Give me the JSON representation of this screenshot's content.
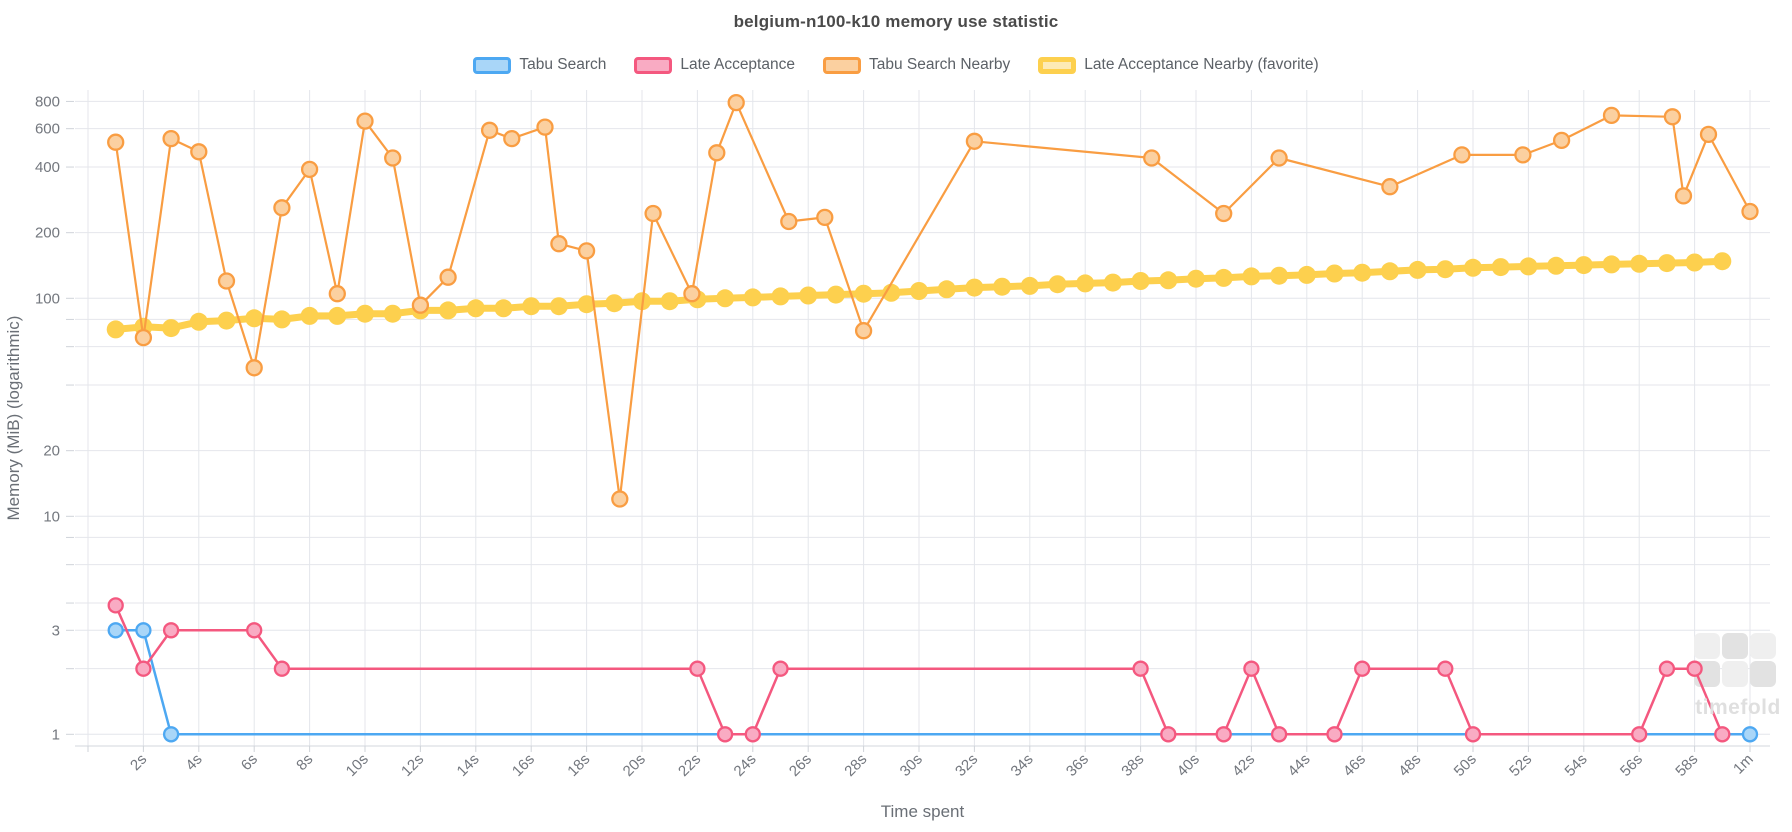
{
  "title": "belgium-n100-k10 memory use statistic",
  "legend": {
    "items": [
      {
        "label": "Tabu Search",
        "line": "#4da8f2",
        "fill": "#a9d6f8",
        "border_width": 3
      },
      {
        "label": "Late Acceptance",
        "line": "#f4587f",
        "fill": "#f9abc3",
        "border_width": 3
      },
      {
        "label": "Tabu Search Nearby",
        "line": "#f99d42",
        "fill": "#fbd0a0",
        "border_width": 3
      },
      {
        "label": "Late Acceptance Nearby (favorite)",
        "line": "#fdd04e",
        "fill": "#fdeab5",
        "border_width": 5
      }
    ]
  },
  "axes": {
    "x": {
      "name": "Time spent",
      "tick_seconds": [
        2,
        4,
        6,
        8,
        10,
        12,
        14,
        16,
        18,
        20,
        22,
        24,
        26,
        28,
        30,
        32,
        34,
        36,
        38,
        40,
        42,
        44,
        46,
        48,
        50,
        52,
        54,
        56,
        58,
        60
      ],
      "tick_labels": [
        "2s",
        "4s",
        "6s",
        "8s",
        "10s",
        "12s",
        "14s",
        "16s",
        "18s",
        "20s",
        "22s",
        "24s",
        "26s",
        "28s",
        "30s",
        "32s",
        "34s",
        "36s",
        "38s",
        "40s",
        "42s",
        "44s",
        "46s",
        "48s",
        "50s",
        "52s",
        "54s",
        "56s",
        "58s",
        "1m"
      ],
      "gridline_seconds": [
        0,
        2,
        4,
        6,
        8,
        10,
        12,
        14,
        16,
        18,
        20,
        22,
        24,
        26,
        28,
        30,
        32,
        34,
        36,
        38,
        40,
        42,
        44,
        46,
        48,
        50,
        52,
        54,
        56,
        58,
        60
      ]
    },
    "y": {
      "name": "Memory (MiB) (logarithmic)",
      "labeled_ticks": [
        800,
        600,
        400,
        200,
        100,
        20,
        10,
        3,
        1
      ],
      "minor_ticks": [
        2,
        4,
        6,
        8,
        40,
        60,
        80
      ]
    }
  },
  "watermark": {
    "text": "timefold"
  },
  "chart_data": {
    "type": "line",
    "title": "belgium-n100-k10 memory use statistic",
    "xlabel": "Time spent",
    "ylabel": "Memory (MiB) (logarithmic)",
    "x_unit": "seconds",
    "y_scale": "log",
    "x_range": [
      0,
      60
    ],
    "y_range": [
      0.9,
      900
    ],
    "grid": true,
    "legend_position": "top",
    "series": [
      {
        "name": "Tabu Search",
        "color": "#4da8f2",
        "marker_fill": "#a9d6f8",
        "width": 2.5,
        "marker_r": 7,
        "points": [
          [
            1,
            3
          ],
          [
            2,
            3
          ],
          [
            3,
            1
          ],
          [
            60,
            1
          ]
        ]
      },
      {
        "name": "Late Acceptance",
        "color": "#f4587f",
        "marker_fill": "#f9abc3",
        "width": 2.5,
        "marker_r": 7,
        "points": [
          [
            1,
            3.9
          ],
          [
            2,
            2
          ],
          [
            3,
            3
          ],
          [
            6,
            3
          ],
          [
            7,
            2
          ],
          [
            22,
            2
          ],
          [
            23,
            1
          ],
          [
            24,
            1
          ],
          [
            25,
            2
          ],
          [
            38,
            2
          ],
          [
            39,
            1
          ],
          [
            41,
            1
          ],
          [
            42,
            2
          ],
          [
            43,
            1
          ],
          [
            45,
            1
          ],
          [
            46,
            2
          ],
          [
            49,
            2
          ],
          [
            50,
            1
          ],
          [
            56,
            1
          ],
          [
            57,
            2
          ],
          [
            58,
            2
          ],
          [
            59,
            1
          ]
        ]
      },
      {
        "name": "Tabu Search Nearby",
        "color": "#f99d42",
        "marker_fill": "#fbd0a0",
        "width": 2.2,
        "marker_r": 7.5,
        "points": [
          [
            1,
            520
          ],
          [
            2,
            66
          ],
          [
            3,
            540
          ],
          [
            4,
            470
          ],
          [
            5,
            120
          ],
          [
            6,
            48
          ],
          [
            7,
            260
          ],
          [
            8,
            390
          ],
          [
            9,
            105
          ],
          [
            10,
            650
          ],
          [
            11,
            440
          ],
          [
            12,
            93
          ],
          [
            13,
            125
          ],
          [
            14.5,
            590
          ],
          [
            15.3,
            540
          ],
          [
            16.5,
            610
          ],
          [
            17,
            178
          ],
          [
            18,
            165
          ],
          [
            19.2,
            12
          ],
          [
            20.4,
            245
          ],
          [
            21.8,
            105
          ],
          [
            22.7,
            465
          ],
          [
            23.4,
            790
          ],
          [
            25.3,
            225
          ],
          [
            26.6,
            235
          ],
          [
            28,
            71
          ],
          [
            32,
            525
          ],
          [
            38.4,
            440
          ],
          [
            41,
            245
          ],
          [
            43,
            440
          ],
          [
            47,
            325
          ],
          [
            49.6,
            455
          ],
          [
            51.8,
            455
          ],
          [
            53.2,
            530
          ],
          [
            55,
            690
          ],
          [
            57.2,
            680
          ],
          [
            57.6,
            295
          ],
          [
            58.5,
            565
          ],
          [
            60,
            250
          ]
        ]
      },
      {
        "name": "Late Acceptance Nearby (favorite)",
        "color": "#fdd04e",
        "marker_fill": "#fdd04e",
        "width": 7,
        "marker_r": 9,
        "points": [
          [
            1,
            72
          ],
          [
            2,
            74
          ],
          [
            3,
            73
          ],
          [
            4,
            78
          ],
          [
            5,
            79
          ],
          [
            6,
            81
          ],
          [
            7,
            80
          ],
          [
            8,
            83
          ],
          [
            9,
            83
          ],
          [
            10,
            85
          ],
          [
            11,
            85
          ],
          [
            12,
            88
          ],
          [
            13,
            88
          ],
          [
            14,
            90
          ],
          [
            15,
            90
          ],
          [
            16,
            92
          ],
          [
            17,
            92
          ],
          [
            18,
            94
          ],
          [
            19,
            95
          ],
          [
            20,
            97
          ],
          [
            21,
            97
          ],
          [
            22,
            99
          ],
          [
            23,
            100
          ],
          [
            24,
            101
          ],
          [
            25,
            102
          ],
          [
            26,
            103
          ],
          [
            27,
            104
          ],
          [
            28,
            105
          ],
          [
            29,
            106
          ],
          [
            30,
            108
          ],
          [
            31,
            110
          ],
          [
            32,
            112
          ],
          [
            33,
            113
          ],
          [
            34,
            114
          ],
          [
            35,
            116
          ],
          [
            36,
            117
          ],
          [
            37,
            118
          ],
          [
            38,
            120
          ],
          [
            39,
            121
          ],
          [
            40,
            123
          ],
          [
            41,
            124
          ],
          [
            42,
            126
          ],
          [
            43,
            127
          ],
          [
            44,
            128
          ],
          [
            45,
            130
          ],
          [
            46,
            131
          ],
          [
            47,
            133
          ],
          [
            48,
            135
          ],
          [
            49,
            136
          ],
          [
            50,
            138
          ],
          [
            51,
            139
          ],
          [
            52,
            140
          ],
          [
            53,
            141
          ],
          [
            54,
            142
          ],
          [
            55,
            143
          ],
          [
            56,
            144
          ],
          [
            57,
            145
          ],
          [
            58,
            146
          ],
          [
            59,
            148
          ]
        ]
      }
    ],
    "draw_order": [
      0,
      1,
      3,
      2
    ]
  },
  "colors": {
    "grid": "#e4e6eb",
    "axis_line": "#d3d7dd",
    "tick": "#cfd3d9",
    "tick_text": "#73777e",
    "axis_name": "#6a6f76",
    "title": "#4a4a4a",
    "legend_text": "#5c6167",
    "watermark_dark": "#e2e2e2",
    "watermark_light": "#efefef"
  }
}
